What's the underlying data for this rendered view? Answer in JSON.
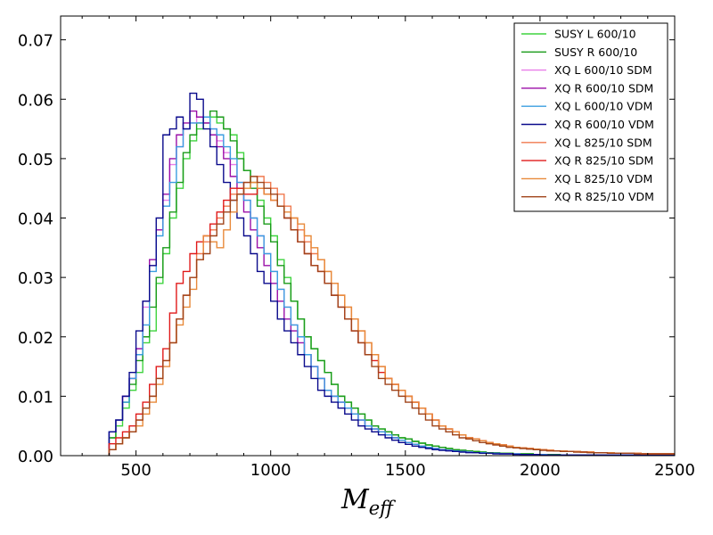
{
  "chart_data": {
    "type": "line",
    "title": "",
    "xlabel": "M",
    "xlabel_sub": "eff",
    "ylabel": "",
    "xlim": [
      220,
      2500
    ],
    "ylim": [
      0,
      0.074
    ],
    "xticks": [
      500,
      1000,
      1500,
      2000,
      2500
    ],
    "xtick_labels": [
      "500",
      "1000",
      "1500",
      "2000",
      "2500"
    ],
    "yticks": [
      0.0,
      0.01,
      0.02,
      0.03,
      0.04,
      0.05,
      0.06,
      0.07
    ],
    "ytick_labels": [
      "0.00",
      "0.01",
      "0.02",
      "0.03",
      "0.04",
      "0.05",
      "0.06",
      "0.07"
    ],
    "grid": false,
    "legend_position": "top-right",
    "bin_start": 400,
    "bin_width": 25,
    "series": [
      {
        "name": "SUSY L 600/10",
        "color": "#3fd43f",
        "values": [
          0.003,
          0.005,
          0.008,
          0.011,
          0.014,
          0.019,
          0.021,
          0.029,
          0.034,
          0.04,
          0.045,
          0.05,
          0.053,
          0.055,
          0.056,
          0.057,
          0.056,
          0.055,
          0.054,
          0.051,
          0.048,
          0.046,
          0.043,
          0.04,
          0.037,
          0.033,
          0.03,
          0.026,
          0.023,
          0.02,
          0.018,
          0.016,
          0.014,
          0.012,
          0.01,
          0.009,
          0.008,
          0.007,
          0.006,
          0.005,
          0.0045,
          0.004,
          0.0035,
          0.003,
          0.0028,
          0.0024,
          0.0021,
          0.0018,
          0.0016,
          0.0014,
          0.0012,
          0.001,
          0.0009,
          0.0008,
          0.0007,
          0.0006,
          0.0005,
          0.0005,
          0.0004,
          0.0004,
          0.0003,
          0.0003,
          0.0003,
          0.0002,
          0.0002,
          0.0002,
          0.0002,
          0.0001,
          0.0001,
          0.0001,
          0.0001,
          0.0001,
          0.0001,
          0.0001,
          0.0001,
          0.0001,
          0.0001,
          0.0001,
          0.0001,
          0.0001,
          0.0001,
          0.0001,
          0.0001,
          0.0001
        ]
      },
      {
        "name": "SUSY R 600/10",
        "color": "#1a9b1a",
        "values": [
          0.003,
          0.006,
          0.009,
          0.012,
          0.016,
          0.02,
          0.025,
          0.03,
          0.035,
          0.041,
          0.046,
          0.051,
          0.054,
          0.056,
          0.057,
          0.058,
          0.057,
          0.055,
          0.053,
          0.05,
          0.048,
          0.045,
          0.042,
          0.039,
          0.036,
          0.032,
          0.029,
          0.026,
          0.023,
          0.02,
          0.018,
          0.016,
          0.014,
          0.012,
          0.01,
          0.009,
          0.008,
          0.007,
          0.006,
          0.005,
          0.0045,
          0.004,
          0.0035,
          0.003,
          0.0028,
          0.0024,
          0.0021,
          0.0018,
          0.0016,
          0.0014,
          0.0012,
          0.001,
          0.0009,
          0.0008,
          0.0007,
          0.0006,
          0.0005,
          0.0005,
          0.0004,
          0.0004,
          0.0003,
          0.0003,
          0.0003,
          0.0002,
          0.0002,
          0.0002,
          0.0002,
          0.0001,
          0.0001,
          0.0001,
          0.0001,
          0.0001,
          0.0001,
          0.0001,
          0.0001,
          0.0001,
          0.0001,
          0.0001,
          0.0001,
          0.0001,
          0.0001,
          0.0001,
          0.0001,
          0.0001
        ]
      },
      {
        "name": "XQ L 600/10 SDM",
        "color": "#e97ee9",
        "values": [
          0.004,
          0.006,
          0.01,
          0.013,
          0.018,
          0.025,
          0.032,
          0.038,
          0.043,
          0.049,
          0.052,
          0.055,
          0.056,
          0.057,
          0.056,
          0.055,
          0.053,
          0.051,
          0.049,
          0.046,
          0.043,
          0.04,
          0.037,
          0.034,
          0.031,
          0.028,
          0.025,
          0.022,
          0.02,
          0.017,
          0.015,
          0.013,
          0.011,
          0.01,
          0.009,
          0.008,
          0.007,
          0.006,
          0.005,
          0.0045,
          0.004,
          0.0035,
          0.003,
          0.0026,
          0.0022,
          0.0019,
          0.0016,
          0.0014,
          0.0012,
          0.001,
          0.0009,
          0.0008,
          0.0007,
          0.0006,
          0.0005,
          0.0005,
          0.0004,
          0.0004,
          0.0003,
          0.0003,
          0.0003,
          0.0002,
          0.0002,
          0.0002,
          0.0002,
          0.0001,
          0.0001,
          0.0001,
          0.0001,
          0.0001,
          0.0001,
          0.0001,
          0.0001,
          0.0001,
          0.0001,
          0.0001,
          0.0001,
          0.0001,
          0.0001,
          0.0001,
          0.0001,
          0.0001,
          0.0001,
          0.0001
        ]
      },
      {
        "name": "XQ R 600/10 SDM",
        "color": "#9b0fa8",
        "values": [
          0.004,
          0.006,
          0.01,
          0.013,
          0.018,
          0.026,
          0.033,
          0.038,
          0.044,
          0.05,
          0.054,
          0.056,
          0.058,
          0.057,
          0.056,
          0.054,
          0.052,
          0.05,
          0.047,
          0.044,
          0.041,
          0.038,
          0.035,
          0.032,
          0.029,
          0.026,
          0.023,
          0.021,
          0.019,
          0.017,
          0.015,
          0.013,
          0.011,
          0.01,
          0.009,
          0.008,
          0.007,
          0.006,
          0.005,
          0.0045,
          0.004,
          0.0035,
          0.003,
          0.0026,
          0.0022,
          0.0019,
          0.0016,
          0.0014,
          0.0012,
          0.001,
          0.0009,
          0.0008,
          0.0007,
          0.0006,
          0.0005,
          0.0005,
          0.0004,
          0.0004,
          0.0003,
          0.0003,
          0.0003,
          0.0002,
          0.0002,
          0.0002,
          0.0002,
          0.0001,
          0.0001,
          0.0001,
          0.0001,
          0.0001,
          0.0001,
          0.0001,
          0.0001,
          0.0001,
          0.0001,
          0.0001,
          0.0001,
          0.0001,
          0.0001,
          0.0001,
          0.0001,
          0.0001,
          0.0001,
          0.0001
        ]
      },
      {
        "name": "XQ L 600/10 VDM",
        "color": "#3a9ee0",
        "values": [
          0.004,
          0.006,
          0.009,
          0.013,
          0.017,
          0.022,
          0.031,
          0.037,
          0.042,
          0.046,
          0.052,
          0.055,
          0.056,
          0.056,
          0.057,
          0.055,
          0.054,
          0.052,
          0.05,
          0.046,
          0.043,
          0.04,
          0.037,
          0.034,
          0.031,
          0.028,
          0.025,
          0.022,
          0.02,
          0.017,
          0.015,
          0.013,
          0.011,
          0.01,
          0.009,
          0.008,
          0.007,
          0.006,
          0.005,
          0.0045,
          0.004,
          0.0035,
          0.003,
          0.0026,
          0.0022,
          0.0019,
          0.0016,
          0.0014,
          0.0012,
          0.001,
          0.0009,
          0.0008,
          0.0007,
          0.0006,
          0.0005,
          0.0005,
          0.0004,
          0.0004,
          0.0003,
          0.0003,
          0.0003,
          0.0002,
          0.0002,
          0.0002,
          0.0002,
          0.0001,
          0.0001,
          0.0001,
          0.0001,
          0.0001,
          0.0001,
          0.0001,
          0.0001,
          0.0001,
          0.0001,
          0.0001,
          0.0001,
          0.0001,
          0.0001,
          0.0001,
          0.0001,
          0.0001,
          0.0001,
          0.0001
        ]
      },
      {
        "name": "XQ R 600/10 VDM",
        "color": "#0a0a8c",
        "values": [
          0.004,
          0.006,
          0.01,
          0.014,
          0.021,
          0.026,
          0.032,
          0.04,
          0.054,
          0.055,
          0.057,
          0.055,
          0.061,
          0.06,
          0.055,
          0.052,
          0.049,
          0.046,
          0.043,
          0.04,
          0.037,
          0.034,
          0.031,
          0.029,
          0.026,
          0.023,
          0.021,
          0.019,
          0.017,
          0.015,
          0.013,
          0.011,
          0.01,
          0.009,
          0.008,
          0.007,
          0.006,
          0.005,
          0.0045,
          0.004,
          0.0035,
          0.003,
          0.0026,
          0.0022,
          0.0019,
          0.0016,
          0.0014,
          0.0012,
          0.001,
          0.0009,
          0.0008,
          0.0007,
          0.0006,
          0.0005,
          0.0005,
          0.0004,
          0.0004,
          0.0003,
          0.0003,
          0.0003,
          0.0002,
          0.0002,
          0.0002,
          0.0002,
          0.0001,
          0.0001,
          0.0001,
          0.0001,
          0.0001,
          0.0001,
          0.0001,
          0.0001,
          0.0001,
          0.0001,
          0.0001,
          0.0001,
          0.0001,
          0.0001,
          0.0001,
          0.0001,
          0.0001,
          0.0001,
          0.0001,
          0.0001
        ]
      },
      {
        "name": "XQ L 825/10 SDM",
        "color": "#f07a4f",
        "values": [
          0.001,
          0.002,
          0.003,
          0.004,
          0.006,
          0.008,
          0.01,
          0.013,
          0.016,
          0.019,
          0.023,
          0.027,
          0.03,
          0.034,
          0.036,
          0.038,
          0.04,
          0.042,
          0.044,
          0.045,
          0.046,
          0.046,
          0.047,
          0.046,
          0.045,
          0.044,
          0.042,
          0.04,
          0.038,
          0.036,
          0.034,
          0.033,
          0.031,
          0.029,
          0.027,
          0.025,
          0.023,
          0.021,
          0.019,
          0.017,
          0.015,
          0.013,
          0.012,
          0.011,
          0.01,
          0.009,
          0.008,
          0.007,
          0.006,
          0.005,
          0.0045,
          0.004,
          0.0035,
          0.003,
          0.0028,
          0.0025,
          0.0022,
          0.002,
          0.0018,
          0.0016,
          0.0014,
          0.0013,
          0.0012,
          0.0011,
          0.001,
          0.0009,
          0.0008,
          0.0008,
          0.0007,
          0.0007,
          0.0006,
          0.0006,
          0.0005,
          0.0005,
          0.0005,
          0.0004,
          0.0004,
          0.0004,
          0.0004,
          0.0003,
          0.0003,
          0.0003,
          0.0003,
          0.0003
        ]
      },
      {
        "name": "XQ R 825/10 SDM",
        "color": "#e01a1a",
        "values": [
          0.002,
          0.003,
          0.004,
          0.005,
          0.007,
          0.009,
          0.012,
          0.015,
          0.018,
          0.024,
          0.029,
          0.031,
          0.034,
          0.036,
          0.037,
          0.039,
          0.041,
          0.043,
          0.045,
          0.045,
          0.044,
          0.044,
          0.045,
          0.044,
          0.043,
          0.042,
          0.04,
          0.038,
          0.036,
          0.034,
          0.032,
          0.031,
          0.029,
          0.027,
          0.025,
          0.023,
          0.021,
          0.019,
          0.017,
          0.016,
          0.014,
          0.013,
          0.012,
          0.011,
          0.01,
          0.009,
          0.008,
          0.007,
          0.006,
          0.005,
          0.0045,
          0.004,
          0.0035,
          0.003,
          0.0028,
          0.0025,
          0.0022,
          0.002,
          0.0018,
          0.0016,
          0.0014,
          0.0013,
          0.0012,
          0.0011,
          0.001,
          0.0009,
          0.0008,
          0.0008,
          0.0007,
          0.0007,
          0.0006,
          0.0006,
          0.0005,
          0.0005,
          0.0005,
          0.0004,
          0.0004,
          0.0004,
          0.0004,
          0.0003,
          0.0003,
          0.0003,
          0.0003,
          0.0003
        ]
      },
      {
        "name": "XQ L 825/10 VDM",
        "color": "#e88a3a",
        "values": [
          0.001,
          0.002,
          0.003,
          0.004,
          0.005,
          0.007,
          0.009,
          0.012,
          0.015,
          0.019,
          0.022,
          0.025,
          0.028,
          0.033,
          0.037,
          0.036,
          0.035,
          0.038,
          0.041,
          0.044,
          0.045,
          0.046,
          0.045,
          0.044,
          0.043,
          0.042,
          0.041,
          0.04,
          0.039,
          0.037,
          0.035,
          0.033,
          0.031,
          0.029,
          0.027,
          0.025,
          0.023,
          0.021,
          0.019,
          0.017,
          0.015,
          0.013,
          0.012,
          0.011,
          0.01,
          0.009,
          0.008,
          0.007,
          0.006,
          0.005,
          0.0045,
          0.004,
          0.0035,
          0.003,
          0.0028,
          0.0025,
          0.0022,
          0.002,
          0.0018,
          0.0016,
          0.0014,
          0.0013,
          0.0012,
          0.0011,
          0.001,
          0.0009,
          0.0008,
          0.0008,
          0.0007,
          0.0007,
          0.0006,
          0.0006,
          0.0005,
          0.0005,
          0.0005,
          0.0004,
          0.0004,
          0.0004,
          0.0004,
          0.0003,
          0.0003,
          0.0003,
          0.0003,
          0.0003
        ]
      },
      {
        "name": "XQ R 825/10 VDM",
        "color": "#a0441a",
        "values": [
          0.001,
          0.002,
          0.003,
          0.004,
          0.006,
          0.008,
          0.01,
          0.013,
          0.016,
          0.019,
          0.023,
          0.027,
          0.03,
          0.033,
          0.034,
          0.037,
          0.039,
          0.041,
          0.043,
          0.044,
          0.046,
          0.047,
          0.046,
          0.045,
          0.044,
          0.042,
          0.04,
          0.038,
          0.036,
          0.034,
          0.032,
          0.031,
          0.029,
          0.027,
          0.025,
          0.023,
          0.021,
          0.019,
          0.017,
          0.015,
          0.013,
          0.012,
          0.011,
          0.01,
          0.009,
          0.008,
          0.007,
          0.006,
          0.005,
          0.0045,
          0.004,
          0.0035,
          0.003,
          0.0028,
          0.0025,
          0.0022,
          0.002,
          0.0018,
          0.0016,
          0.0014,
          0.0013,
          0.0012,
          0.0011,
          0.001,
          0.0009,
          0.0008,
          0.0008,
          0.0007,
          0.0007,
          0.0006,
          0.0006,
          0.0005,
          0.0005,
          0.0005,
          0.0004,
          0.0004,
          0.0004,
          0.0004,
          0.0003,
          0.0003,
          0.0003,
          0.0003,
          0.0003,
          0.0003
        ]
      }
    ]
  }
}
